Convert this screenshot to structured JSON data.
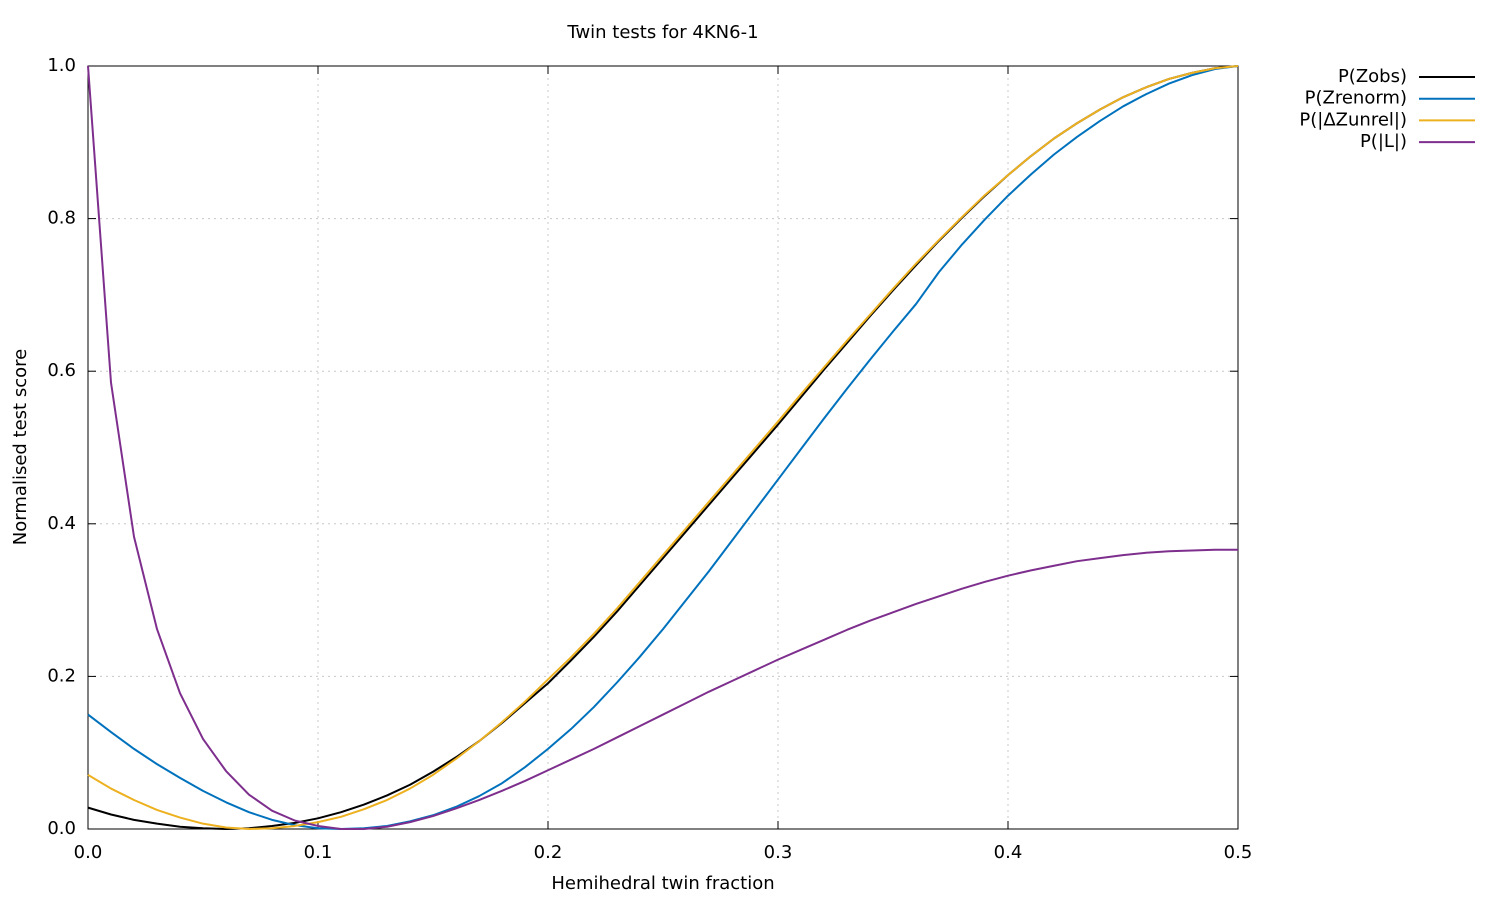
{
  "chart_data": {
    "type": "line",
    "title": "Twin tests for 4KN6-1",
    "x_label": "Hemihedral twin fraction",
    "y_label": "Normalised test score",
    "x": [
      0,
      0.01,
      0.02,
      0.03,
      0.04,
      0.05,
      0.06,
      0.07,
      0.08,
      0.09,
      0.1,
      0.11,
      0.12,
      0.13,
      0.14,
      0.15,
      0.16,
      0.17,
      0.18,
      0.19,
      0.2,
      0.21,
      0.22,
      0.23,
      0.24,
      0.25,
      0.26,
      0.27,
      0.28,
      0.29,
      0.3,
      0.31,
      0.32,
      0.33,
      0.34,
      0.35,
      0.36,
      0.37,
      0.38,
      0.39,
      0.4,
      0.41,
      0.42,
      0.43,
      0.44,
      0.45,
      0.46,
      0.47,
      0.48,
      0.49,
      0.5
    ],
    "series": [
      {
        "name": "P(Zobs)",
        "color": "#000000",
        "values": [
          0.028,
          0.019,
          0.012,
          0.007,
          0.003,
          0.001,
          0,
          0.001,
          0.004,
          0.008,
          0.014,
          0.022,
          0.032,
          0.044,
          0.058,
          0.075,
          0.094,
          0.115,
          0.139,
          0.165,
          0.191,
          0.221,
          0.252,
          0.285,
          0.32,
          0.355,
          0.39,
          0.425,
          0.46,
          0.495,
          0.53,
          0.566,
          0.602,
          0.637,
          0.672,
          0.706,
          0.739,
          0.771,
          0.801,
          0.83,
          0.857,
          0.882,
          0.905,
          0.925,
          0.943,
          0.959,
          0.972,
          0.983,
          0.991,
          0.997,
          1.0
        ]
      },
      {
        "name": "P(Zrenorm)",
        "color": "#0072bd",
        "values": [
          0.15,
          0.127,
          0.105,
          0.085,
          0.067,
          0.05,
          0.035,
          0.022,
          0.012,
          0.005,
          0.001,
          0,
          0.001,
          0.004,
          0.01,
          0.018,
          0.029,
          0.043,
          0.06,
          0.081,
          0.105,
          0.131,
          0.16,
          0.192,
          0.226,
          0.262,
          0.3,
          0.338,
          0.378,
          0.418,
          0.458,
          0.498,
          0.538,
          0.577,
          0.615,
          0.652,
          0.688,
          0.73,
          0.766,
          0.799,
          0.83,
          0.858,
          0.884,
          0.907,
          0.928,
          0.947,
          0.963,
          0.977,
          0.988,
          0.996,
          1.0
        ]
      },
      {
        "name": "P(|ΔZunrel|)",
        "color": "#edb120",
        "values": [
          0.071,
          0.053,
          0.038,
          0.025,
          0.015,
          0.007,
          0.002,
          0,
          0.001,
          0.004,
          0.009,
          0.016,
          0.026,
          0.038,
          0.053,
          0.071,
          0.092,
          0.115,
          0.14,
          0.167,
          0.196,
          0.225,
          0.256,
          0.289,
          0.324,
          0.359,
          0.394,
          0.429,
          0.464,
          0.499,
          0.534,
          0.57,
          0.605,
          0.64,
          0.674,
          0.708,
          0.741,
          0.772,
          0.802,
          0.831,
          0.857,
          0.882,
          0.905,
          0.925,
          0.943,
          0.959,
          0.972,
          0.983,
          0.991,
          0.997,
          1.0
        ]
      },
      {
        "name": "P(|L|)",
        "color": "#7e2f8e",
        "values": [
          1.0,
          0.585,
          0.383,
          0.262,
          0.178,
          0.118,
          0.076,
          0.045,
          0.024,
          0.011,
          0.004,
          0,
          0,
          0.003,
          0.009,
          0.017,
          0.027,
          0.038,
          0.05,
          0.063,
          0.077,
          0.091,
          0.105,
          0.12,
          0.135,
          0.15,
          0.165,
          0.18,
          0.194,
          0.208,
          0.222,
          0.235,
          0.248,
          0.261,
          0.273,
          0.284,
          0.295,
          0.305,
          0.315,
          0.324,
          0.332,
          0.339,
          0.345,
          0.351,
          0.355,
          0.359,
          0.362,
          0.364,
          0.365,
          0.366,
          0.366
        ]
      }
    ],
    "xlim": [
      0,
      0.5
    ],
    "ylim": [
      0,
      1
    ],
    "xticks": [
      {
        "value": 0,
        "label": "0.0"
      },
      0.1,
      0.2,
      0.3,
      0.4,
      0.5
    ],
    "yticks": [
      {
        "value": 0,
        "label": "0.0"
      },
      0.2,
      0.4,
      0.6,
      0.8,
      {
        "value": 1,
        "label": "1.0"
      }
    ],
    "grid": true,
    "legend": "outside-top-right"
  }
}
